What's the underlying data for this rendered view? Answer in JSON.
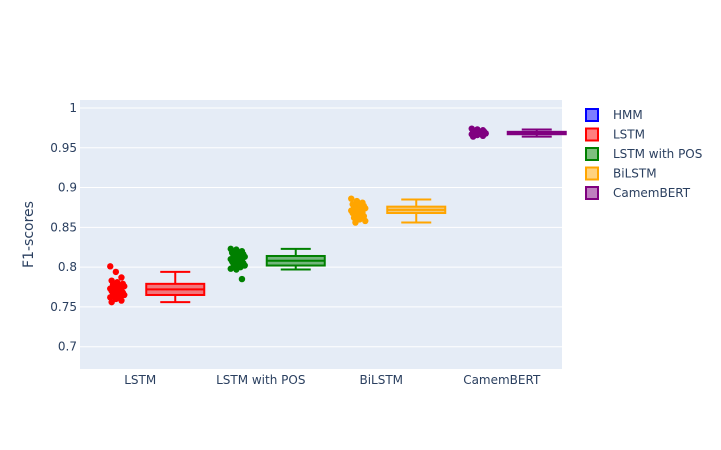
{
  "chart_data": {
    "type": "box",
    "title": "",
    "xlabel": "",
    "ylabel": "F1-scores",
    "ylim": [
      0.672,
      1.01
    ],
    "yticks": [
      0.7,
      0.75,
      0.8,
      0.85,
      0.9,
      0.95,
      1
    ],
    "ytick_labels": [
      "0.7",
      "0.75",
      "0.8",
      "0.85",
      "0.9",
      "0.95",
      "1"
    ],
    "grid": true,
    "legend_position": "top-right",
    "categories": [
      "LSTM",
      "LSTM with POS",
      "BiLSTM",
      "CamemBERT"
    ],
    "series": [
      {
        "name": "HMM",
        "color": "#0000ff",
        "points": []
      },
      {
        "name": "LSTM",
        "color": "#ff0000",
        "category": "LSTM",
        "box": {
          "min": 0.756,
          "q1": 0.765,
          "median": 0.772,
          "q3": 0.779,
          "max": 0.794,
          "mean": 0.772
        },
        "points": [
          0.801,
          0.794,
          0.787,
          0.783,
          0.781,
          0.779,
          0.778,
          0.777,
          0.776,
          0.775,
          0.774,
          0.773,
          0.772,
          0.771,
          0.77,
          0.769,
          0.768,
          0.767,
          0.766,
          0.765,
          0.764,
          0.763,
          0.762,
          0.76,
          0.758,
          0.756
        ]
      },
      {
        "name": "LSTM with POS",
        "color": "#008000",
        "category": "LSTM with POS",
        "box": {
          "min": 0.797,
          "q1": 0.802,
          "median": 0.808,
          "q3": 0.814,
          "max": 0.823,
          "mean": 0.808
        },
        "points": [
          0.823,
          0.822,
          0.82,
          0.818,
          0.817,
          0.816,
          0.815,
          0.814,
          0.813,
          0.812,
          0.811,
          0.81,
          0.809,
          0.808,
          0.807,
          0.806,
          0.805,
          0.804,
          0.803,
          0.802,
          0.801,
          0.8,
          0.798,
          0.797,
          0.785
        ]
      },
      {
        "name": "BiLSTM",
        "color": "#ffa500",
        "category": "BiLSTM",
        "box": {
          "min": 0.856,
          "q1": 0.868,
          "median": 0.872,
          "q3": 0.876,
          "max": 0.885,
          "mean": 0.872
        },
        "points": [
          0.886,
          0.883,
          0.881,
          0.879,
          0.878,
          0.877,
          0.876,
          0.875,
          0.874,
          0.873,
          0.872,
          0.871,
          0.87,
          0.869,
          0.868,
          0.866,
          0.864,
          0.862,
          0.86,
          0.858,
          0.856
        ]
      },
      {
        "name": "CamemBERT",
        "color": "#800080",
        "category": "CamemBERT",
        "box": {
          "min": 0.964,
          "q1": 0.967,
          "median": 0.969,
          "q3": 0.97,
          "max": 0.973,
          "mean": 0.969
        },
        "points": [
          0.974,
          0.973,
          0.972,
          0.971,
          0.97,
          0.97,
          0.969,
          0.969,
          0.968,
          0.968,
          0.967,
          0.967,
          0.966,
          0.965,
          0.964
        ]
      }
    ]
  }
}
